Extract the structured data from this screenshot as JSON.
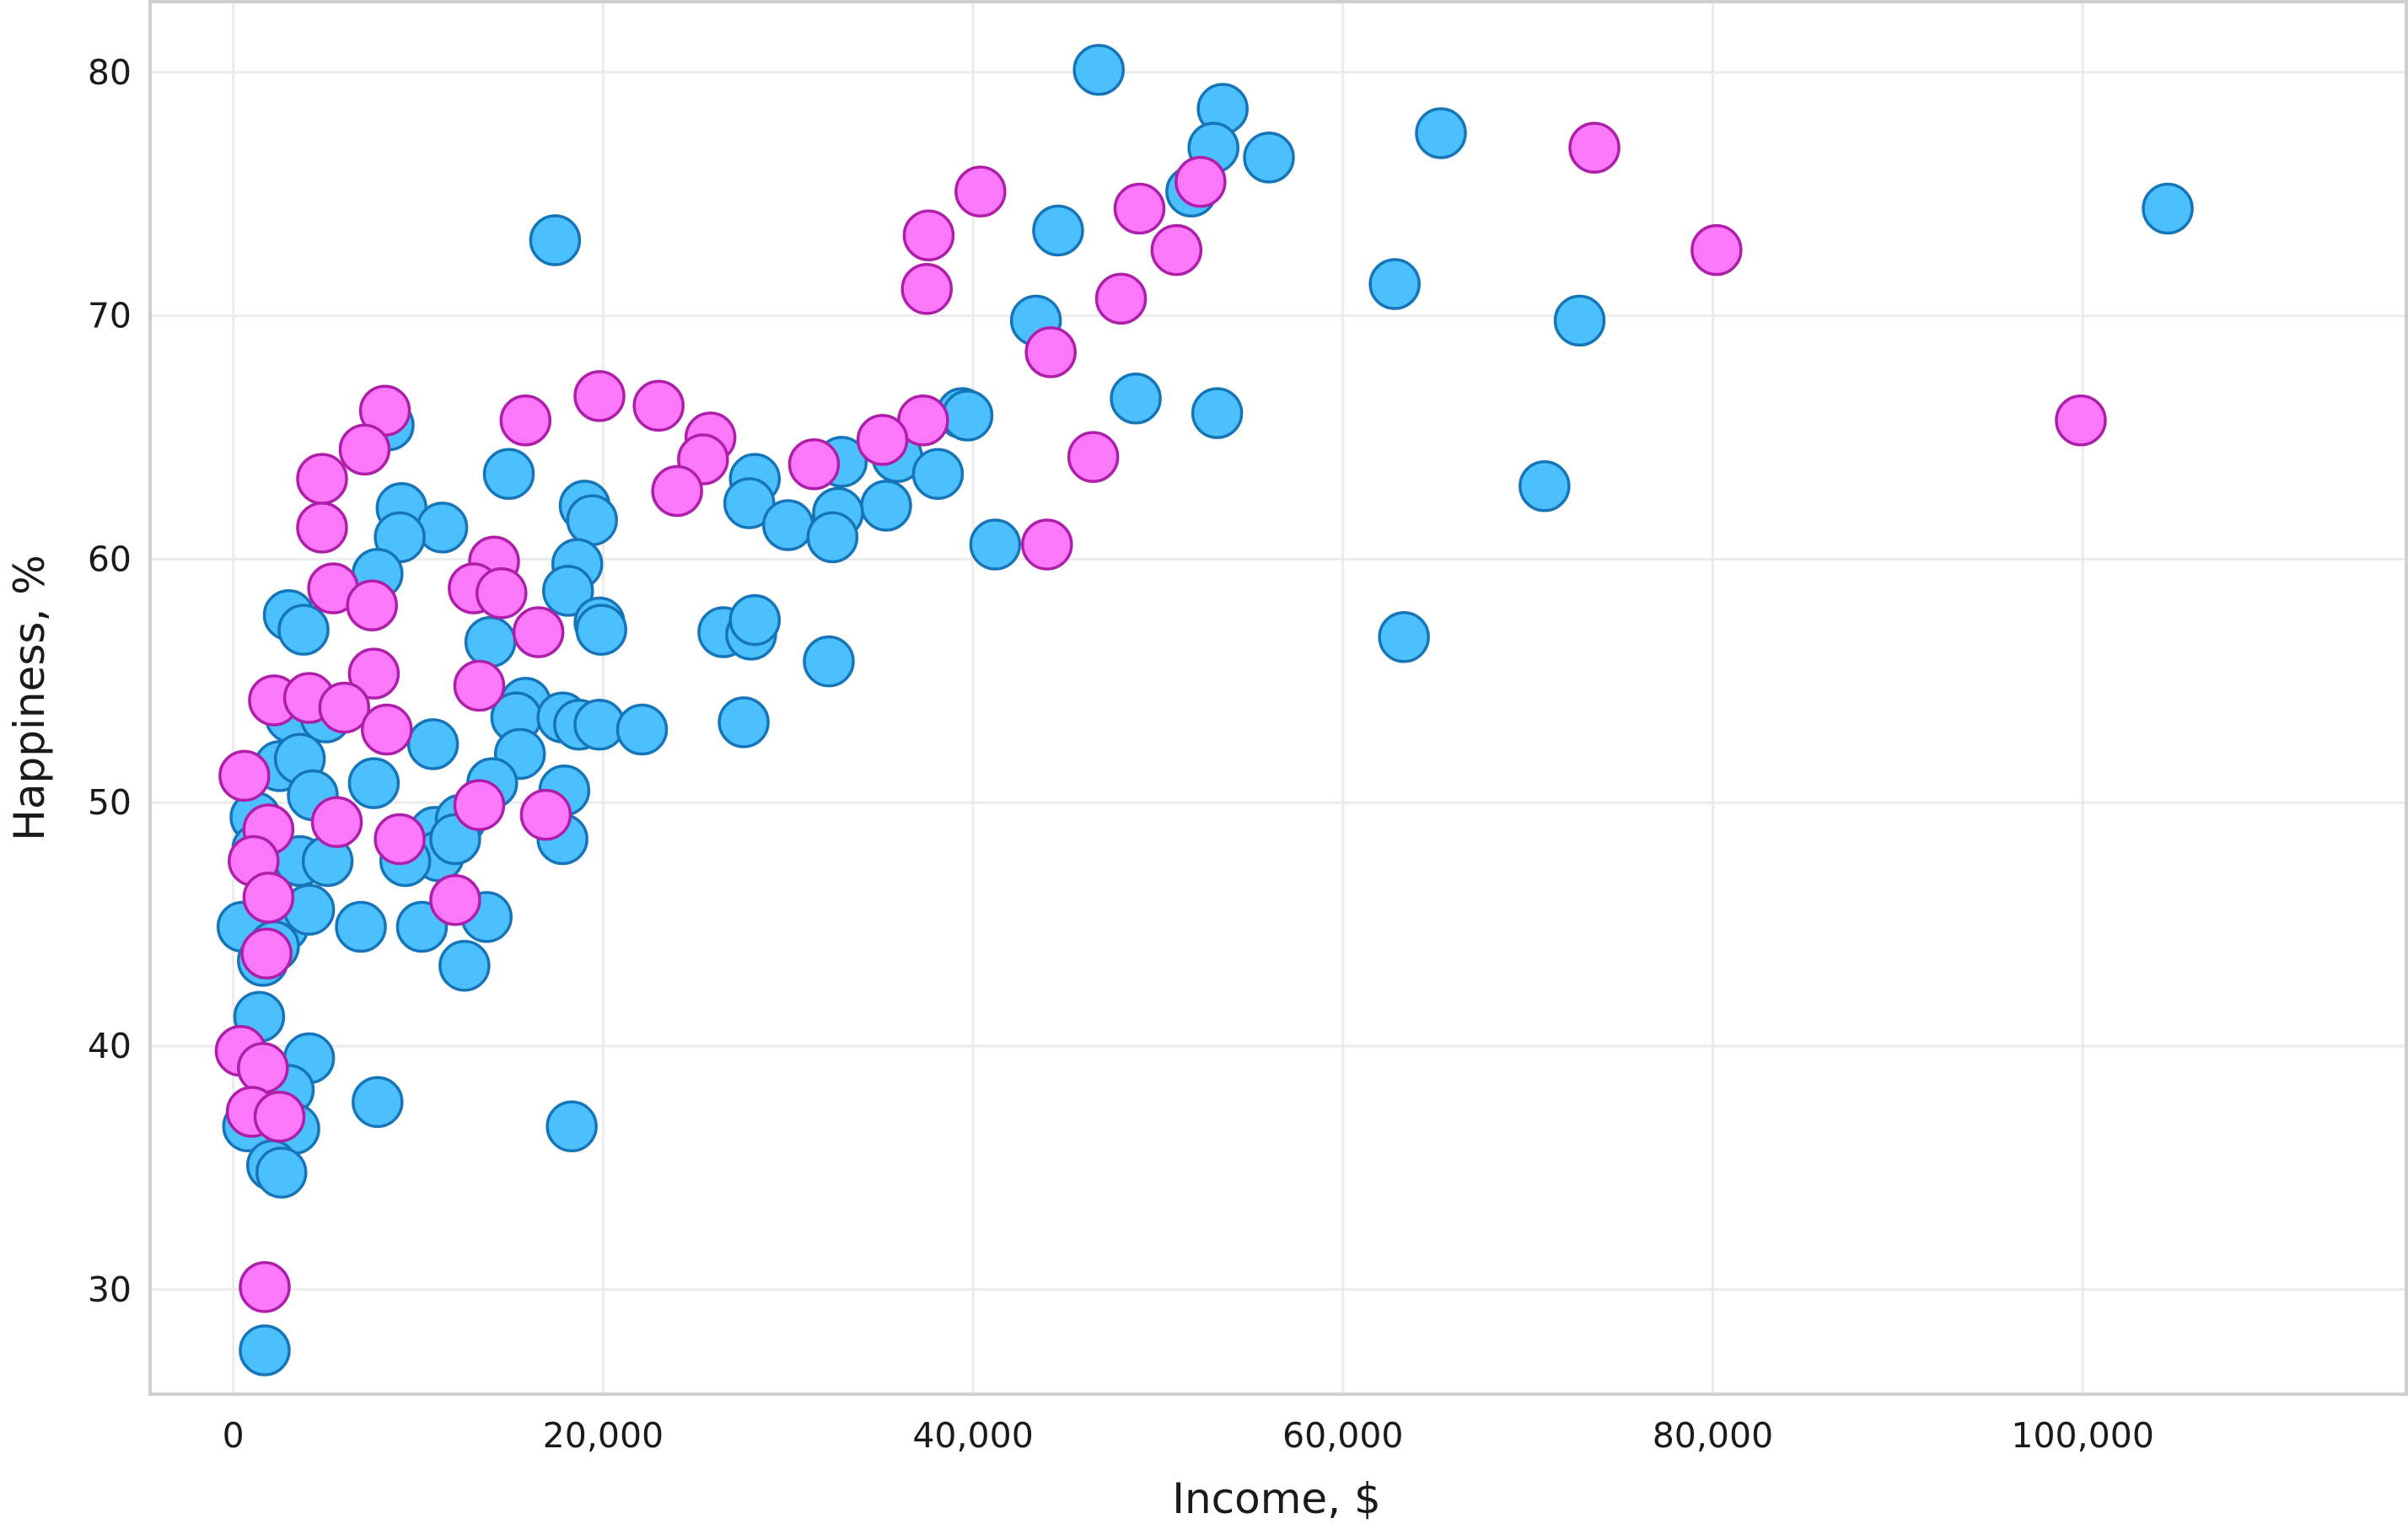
{
  "chart_data": {
    "type": "scatter",
    "title": "",
    "xlabel": "Income, $",
    "ylabel": "Happiness, %",
    "xlim": [
      -4500,
      117500
    ],
    "ylim": [
      25.7,
      82.9
    ],
    "x_ticks": [
      0,
      20000,
      40000,
      60000,
      80000,
      100000
    ],
    "x_tick_labels": [
      "0",
      "20,000",
      "40,000",
      "60,000",
      "80,000",
      "100,000"
    ],
    "y_ticks": [
      30,
      40,
      50,
      60,
      70,
      80
    ],
    "y_tick_labels": [
      "30",
      "40",
      "50",
      "60",
      "70",
      "80"
    ],
    "grid": true,
    "legend": "none",
    "colors": {
      "blue_fill": "#4cc0fc",
      "blue_edge": "#1575b8",
      "magenta_fill": "#fb78fb",
      "magenta_edge": "#ae1ea8",
      "grid": "#ebebeb",
      "frame": "#cfcfcf"
    },
    "series": [
      {
        "color": "#4cc0fc",
        "edge": "#1575b8",
        "points": [
          [
            46800,
            80.1
          ],
          [
            53500,
            78.5
          ],
          [
            53000,
            76.9
          ],
          [
            56000,
            76.5
          ],
          [
            65300,
            77.5
          ],
          [
            51800,
            75.1
          ],
          [
            104600,
            74.4
          ],
          [
            17400,
            73.1
          ],
          [
            44600,
            73.5
          ],
          [
            62800,
            71.3
          ],
          [
            43400,
            69.8
          ],
          [
            72800,
            69.8
          ],
          [
            48800,
            66.6
          ],
          [
            53200,
            66.0
          ],
          [
            39400,
            66.0
          ],
          [
            39700,
            65.9
          ],
          [
            8400,
            65.5
          ],
          [
            35900,
            64.2
          ],
          [
            32900,
            64.0
          ],
          [
            14900,
            63.5
          ],
          [
            38100,
            63.5
          ],
          [
            28200,
            63.3
          ],
          [
            70900,
            63.0
          ],
          [
            27900,
            62.3
          ],
          [
            35300,
            62.2
          ],
          [
            9100,
            62.1
          ],
          [
            19000,
            62.2
          ],
          [
            32700,
            61.9
          ],
          [
            19400,
            61.6
          ],
          [
            11300,
            61.3
          ],
          [
            30000,
            61.4
          ],
          [
            32400,
            60.9
          ],
          [
            9000,
            60.9
          ],
          [
            41200,
            60.6
          ],
          [
            18600,
            59.8
          ],
          [
            7800,
            59.4
          ],
          [
            18100,
            58.7
          ],
          [
            3000,
            57.7
          ],
          [
            3800,
            57.1
          ],
          [
            19800,
            57.4
          ],
          [
            19900,
            57.1
          ],
          [
            26500,
            57.0
          ],
          [
            28000,
            56.9
          ],
          [
            28200,
            57.5
          ],
          [
            13900,
            56.6
          ],
          [
            63300,
            56.8
          ],
          [
            32200,
            55.8
          ],
          [
            15800,
            54.1
          ],
          [
            3100,
            53.5
          ],
          [
            5000,
            53.5
          ],
          [
            15300,
            53.5
          ],
          [
            17800,
            53.5
          ],
          [
            18700,
            53.2
          ],
          [
            19800,
            53.2
          ],
          [
            22100,
            53.0
          ],
          [
            27600,
            53.3
          ],
          [
            10800,
            52.4
          ],
          [
            15500,
            52.0
          ],
          [
            2500,
            51.5
          ],
          [
            3600,
            51.8
          ],
          [
            14000,
            50.8
          ],
          [
            7600,
            50.8
          ],
          [
            4300,
            50.3
          ],
          [
            17900,
            50.5
          ],
          [
            1200,
            49.4
          ],
          [
            10900,
            48.8
          ],
          [
            12300,
            49.3
          ],
          [
            11100,
            47.8
          ],
          [
            12000,
            48.5
          ],
          [
            17800,
            48.5
          ],
          [
            1300,
            48.1
          ],
          [
            9300,
            47.6
          ],
          [
            3600,
            47.6
          ],
          [
            5100,
            47.6
          ],
          [
            2700,
            44.9
          ],
          [
            4100,
            45.6
          ],
          [
            500,
            44.9
          ],
          [
            6900,
            44.9
          ],
          [
            10200,
            44.9
          ],
          [
            13700,
            45.3
          ],
          [
            2200,
            44.1
          ],
          [
            1600,
            43.5
          ],
          [
            12500,
            43.3
          ],
          [
            1400,
            41.2
          ],
          [
            4100,
            39.5
          ],
          [
            3000,
            38.2
          ],
          [
            3300,
            36.6
          ],
          [
            800,
            36.7
          ],
          [
            18300,
            36.7
          ],
          [
            7800,
            37.7
          ],
          [
            2100,
            35.1
          ],
          [
            2600,
            34.8
          ],
          [
            1700,
            27.5
          ]
        ]
      },
      {
        "color": "#fb78fb",
        "edge": "#ae1ea8",
        "points": [
          [
            73600,
            76.9
          ],
          [
            52300,
            75.5
          ],
          [
            40400,
            75.1
          ],
          [
            49000,
            74.4
          ],
          [
            37600,
            73.3
          ],
          [
            51000,
            72.7
          ],
          [
            80200,
            72.7
          ],
          [
            37500,
            71.1
          ],
          [
            48000,
            70.7
          ],
          [
            44200,
            68.5
          ],
          [
            19800,
            66.7
          ],
          [
            23000,
            66.3
          ],
          [
            8200,
            66.1
          ],
          [
            15800,
            65.7
          ],
          [
            99900,
            65.7
          ],
          [
            37300,
            65.7
          ],
          [
            35100,
            64.9
          ],
          [
            25800,
            65.0
          ],
          [
            7100,
            64.5
          ],
          [
            25400,
            64.1
          ],
          [
            46500,
            64.2
          ],
          [
            31400,
            63.9
          ],
          [
            4800,
            63.3
          ],
          [
            24000,
            62.8
          ],
          [
            4800,
            61.3
          ],
          [
            44000,
            60.6
          ],
          [
            14100,
            59.9
          ],
          [
            13000,
            58.8
          ],
          [
            14500,
            58.6
          ],
          [
            5400,
            58.8
          ],
          [
            7500,
            58.1
          ],
          [
            16500,
            57.0
          ],
          [
            7600,
            55.3
          ],
          [
            13300,
            54.8
          ],
          [
            2200,
            54.2
          ],
          [
            4100,
            54.3
          ],
          [
            6000,
            53.9
          ],
          [
            8300,
            53.0
          ],
          [
            600,
            51.1
          ],
          [
            13300,
            49.9
          ],
          [
            16900,
            49.5
          ],
          [
            5600,
            49.2
          ],
          [
            1900,
            48.9
          ],
          [
            9000,
            48.5
          ],
          [
            1100,
            47.6
          ],
          [
            1900,
            46.1
          ],
          [
            12000,
            46.0
          ],
          [
            1800,
            43.8
          ],
          [
            400,
            39.8
          ],
          [
            1600,
            39.1
          ],
          [
            1000,
            37.3
          ],
          [
            2500,
            37.1
          ],
          [
            1700,
            30.1
          ]
        ]
      }
    ]
  }
}
